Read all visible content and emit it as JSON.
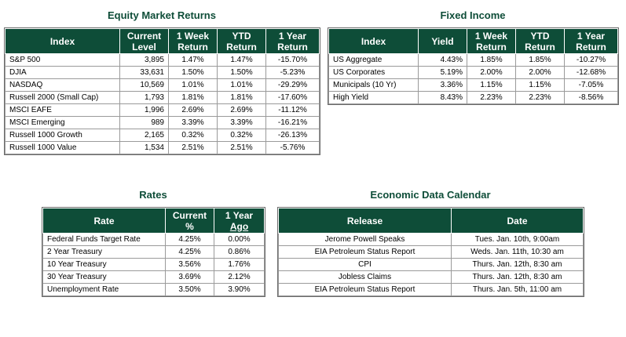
{
  "equity": {
    "title": "Equity Market Returns",
    "headers": [
      "Index",
      "Current Level",
      "1 Week Return",
      "YTD Return",
      "1 Year Return"
    ],
    "rows": [
      [
        "S&P 500",
        "3,895",
        "1.47%",
        "1.47%",
        "-15.70%"
      ],
      [
        "DJIA",
        "33,631",
        "1.50%",
        "1.50%",
        "-5.23%"
      ],
      [
        "NASDAQ",
        "10,569",
        "1.01%",
        "1.01%",
        "-29.29%"
      ],
      [
        "Russell 2000 (Small Cap)",
        "1,793",
        "1.81%",
        "1.81%",
        "-17.60%"
      ],
      [
        "MSCI EAFE",
        "1,996",
        "2.69%",
        "2.69%",
        "-11.12%"
      ],
      [
        "MSCI Emerging",
        "989",
        "3.39%",
        "3.39%",
        "-16.21%"
      ],
      [
        "Russell 1000 Growth",
        "2,165",
        "0.32%",
        "0.32%",
        "-26.13%"
      ],
      [
        "Russell 1000 Value",
        "1,534",
        "2.51%",
        "2.51%",
        "-5.76%"
      ]
    ]
  },
  "fixed_income": {
    "title": "Fixed Income",
    "headers": [
      "Index",
      "Yield",
      "1 Week Return",
      "YTD Return",
      "1 Year Return"
    ],
    "rows": [
      [
        "US Aggregate",
        "4.43%",
        "1.85%",
        "1.85%",
        "-10.27%"
      ],
      [
        "US Corporates",
        "5.19%",
        "2.00%",
        "2.00%",
        "-12.68%"
      ],
      [
        "Municipals (10 Yr)",
        "3.36%",
        "1.15%",
        "1.15%",
        "-7.05%"
      ],
      [
        "High Yield",
        "8.43%",
        "2.23%",
        "2.23%",
        "-8.56%"
      ]
    ]
  },
  "rates": {
    "title": "Rates",
    "headers": [
      "Rate",
      "Current %",
      "1 Year",
      "Ago"
    ],
    "rows": [
      [
        "Federal Funds Target Rate",
        "4.25%",
        "0.00%"
      ],
      [
        "2 Year Treasury",
        "4.25%",
        "0.86%"
      ],
      [
        "10 Year Treasury",
        "3.56%",
        "1.76%"
      ],
      [
        "30 Year Treasury",
        "3.69%",
        "2.12%"
      ],
      [
        "Unemployment Rate",
        "3.50%",
        "3.90%"
      ]
    ]
  },
  "calendar": {
    "title": "Economic Data Calendar",
    "headers": [
      "Release",
      "Date"
    ],
    "rows": [
      [
        "Jerome Powell Speaks",
        "Tues. Jan. 10th, 9:00am"
      ],
      [
        "EIA Petroleum Status Report",
        "Weds. Jan. 11th, 10:30 am"
      ],
      [
        "CPI",
        "Thurs. Jan. 12th, 8:30 am"
      ],
      [
        "Jobless Claims",
        "Thurs. Jan. 12th, 8:30 am"
      ],
      [
        "EIA Petroleum Status Report",
        "Thurs. Jan. 5th, 11:00 am"
      ]
    ]
  }
}
